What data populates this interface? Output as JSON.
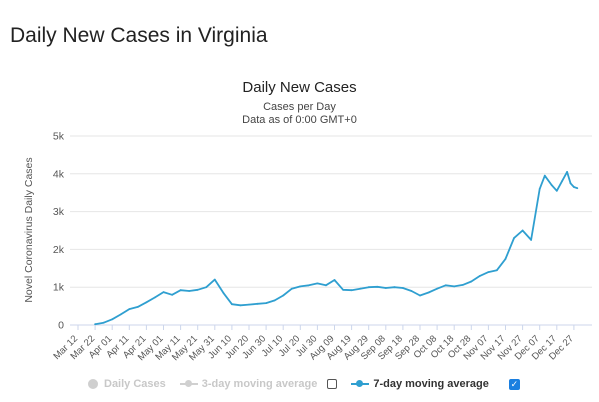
{
  "page": {
    "title": "Daily New Cases in Virginia"
  },
  "legend": {
    "daily_cases": "Daily Cases",
    "three_day": "3-day moving average",
    "seven_day": "7-day moving average",
    "seven_day_checked": true,
    "three_day_checked": false
  },
  "colors": {
    "series": "#2f9fd0",
    "grid": "#e6e6e6"
  },
  "chart_data": {
    "type": "line",
    "title": "Daily New Cases",
    "subtitle": "Cases per Day",
    "subtitle2": "Data as of 0:00 GMT+0",
    "ylabel": "Novel Coronavirus Daily Cases",
    "xlabel": "",
    "ylim": [
      0,
      5000
    ],
    "yticks": [
      "0",
      "1k",
      "2k",
      "3k",
      "4k",
      "5k"
    ],
    "ytick_values": [
      0,
      1000,
      2000,
      3000,
      4000,
      5000
    ],
    "xticks": [
      "Mar 12",
      "Mar 22",
      "Apr 01",
      "Apr 11",
      "Apr 21",
      "May 01",
      "May 11",
      "May 21",
      "May 31",
      "Jun 10",
      "Jun 20",
      "Jun 30",
      "Jul 10",
      "Jul 20",
      "Jul 30",
      "Aug 09",
      "Aug 19",
      "Aug 29",
      "Sep 08",
      "Sep 18",
      "Sep 28",
      "Oct 08",
      "Oct 18",
      "Oct 28",
      "Nov 07",
      "Nov 17",
      "Nov 27",
      "Dec 07",
      "Dec 17",
      "Dec 27"
    ],
    "grid": true,
    "legend_position": "bottom",
    "series": [
      {
        "name": "7-day moving average",
        "x": [
          "Mar 22",
          "Mar 27",
          "Apr 01",
          "Apr 06",
          "Apr 11",
          "Apr 16",
          "Apr 21",
          "Apr 26",
          "May 01",
          "May 06",
          "May 11",
          "May 16",
          "May 21",
          "May 26",
          "May 31",
          "Jun 05",
          "Jun 10",
          "Jun 15",
          "Jun 20",
          "Jun 25",
          "Jun 30",
          "Jul 05",
          "Jul 10",
          "Jul 15",
          "Jul 20",
          "Jul 25",
          "Jul 30",
          "Aug 04",
          "Aug 09",
          "Aug 14",
          "Aug 19",
          "Aug 24",
          "Aug 29",
          "Sep 03",
          "Sep 08",
          "Sep 13",
          "Sep 18",
          "Sep 23",
          "Sep 28",
          "Oct 03",
          "Oct 08",
          "Oct 13",
          "Oct 18",
          "Oct 23",
          "Oct 28",
          "Nov 02",
          "Nov 07",
          "Nov 12",
          "Nov 17",
          "Nov 22",
          "Nov 27",
          "Dec 02",
          "Dec 07",
          "Dec 10",
          "Dec 14",
          "Dec 17",
          "Dec 20",
          "Dec 23",
          "Dec 25",
          "Dec 27",
          "Dec 29"
        ],
        "values": [
          20,
          60,
          150,
          280,
          420,
          480,
          600,
          730,
          870,
          800,
          920,
          900,
          930,
          1000,
          1200,
          850,
          550,
          520,
          540,
          560,
          580,
          650,
          780,
          960,
          1020,
          1050,
          1100,
          1050,
          1190,
          930,
          920,
          960,
          1000,
          1010,
          980,
          1000,
          980,
          900,
          780,
          860,
          960,
          1050,
          1020,
          1060,
          1150,
          1300,
          1400,
          1450,
          1750,
          2300,
          2500,
          2250,
          3600,
          3950,
          3700,
          3550,
          3800,
          4050,
          3750,
          3650,
          3620
        ]
      }
    ]
  }
}
